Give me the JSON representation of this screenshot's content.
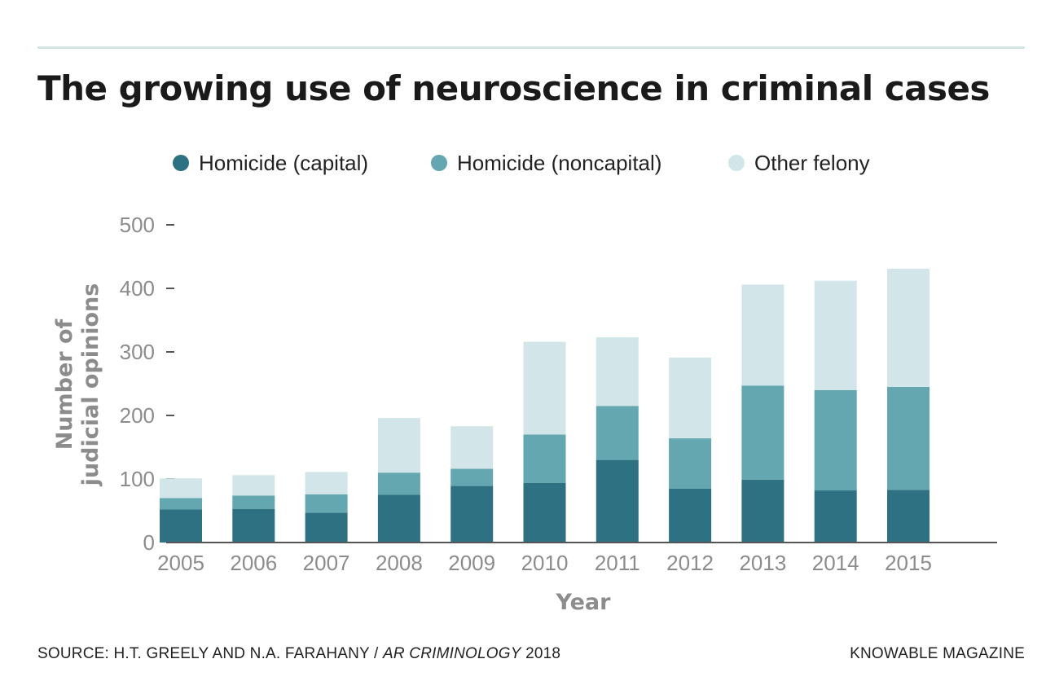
{
  "header": {
    "title": "The growing use of neuroscience in criminal cases"
  },
  "footer": {
    "source_prefix": "SOURCE: H.T. GREELY AND N.A. FARAHANY / ",
    "source_publication": "AR CRIMINOLOGY",
    "source_year": " 2018",
    "brand": "KNOWABLE MAGAZINE"
  },
  "chart_data": {
    "type": "bar",
    "stacked": true,
    "categories": [
      "2005",
      "2006",
      "2007",
      "2008",
      "2009",
      "2010",
      "2011",
      "2012",
      "2013",
      "2014",
      "2015"
    ],
    "series": [
      {
        "name": "Homicide (capital)",
        "color": "#2e7183",
        "values": [
          52,
          53,
          47,
          75,
          89,
          94,
          130,
          85,
          99,
          82,
          83
        ]
      },
      {
        "name": "Homicide (noncapital)",
        "color": "#64a7b0",
        "values": [
          18,
          21,
          29,
          35,
          27,
          76,
          85,
          79,
          148,
          158,
          162
        ]
      },
      {
        "name": "Other felony",
        "color": "#d2e6e9",
        "values": [
          31,
          32,
          35,
          86,
          67,
          146,
          108,
          127,
          159,
          172,
          186
        ]
      }
    ],
    "xlabel": "Year",
    "ylabel": [
      "Number of",
      "judicial opinions"
    ],
    "ylim": [
      0,
      500
    ],
    "yticks": [
      "0",
      "100",
      "200",
      "300",
      "400",
      "500"
    ],
    "grid": false,
    "legend_position": "top"
  }
}
